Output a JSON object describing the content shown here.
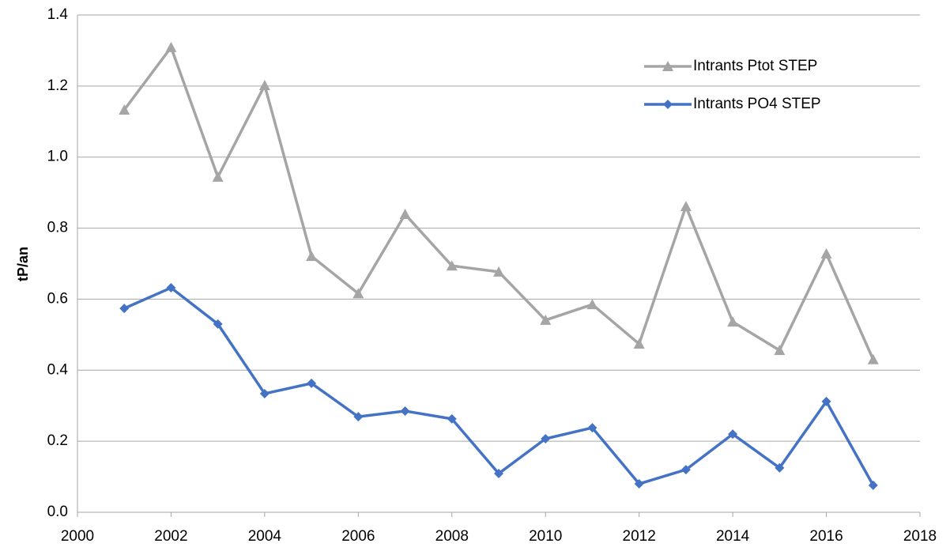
{
  "chart_data": {
    "type": "line",
    "ylabel": "tP/an",
    "x": [
      2001,
      2002,
      2003,
      2004,
      2005,
      2006,
      2007,
      2008,
      2009,
      2010,
      2011,
      2012,
      2013,
      2014,
      2015,
      2016,
      2017
    ],
    "series": [
      {
        "name": "Intrants Ptot STEP",
        "color": "#a5a5a5",
        "marker": "triangle",
        "values": [
          1.133,
          1.309,
          0.944,
          1.202,
          0.721,
          0.616,
          0.839,
          0.694,
          0.677,
          0.541,
          0.585,
          0.474,
          0.861,
          0.536,
          0.456,
          0.728,
          0.43
        ]
      },
      {
        "name": "Intrants PO4 STEP",
        "color": "#4472c4",
        "marker": "diamond",
        "values": [
          0.574,
          0.632,
          0.53,
          0.334,
          0.363,
          0.269,
          0.285,
          0.263,
          0.109,
          0.207,
          0.238,
          0.08,
          0.12,
          0.22,
          0.125,
          0.312,
          0.076
        ]
      }
    ],
    "xlim": [
      2000,
      2018
    ],
    "xticks": [
      2000,
      2002,
      2004,
      2006,
      2008,
      2010,
      2012,
      2014,
      2016,
      2018
    ],
    "ylim": [
      0,
      1.4
    ],
    "yticks": [
      {
        "value": 0,
        "label": "0.0"
      },
      0.2,
      0.4,
      0.6,
      0.8,
      {
        "value": 1,
        "label": "1.0"
      },
      1.2,
      1.4
    ],
    "grid": true,
    "legend": "upper right"
  }
}
